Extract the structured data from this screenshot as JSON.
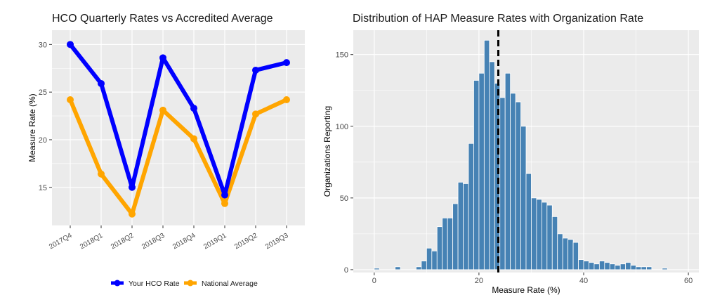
{
  "colors": {
    "panel_bg": "#ebebeb",
    "grid": "#ffffff",
    "hco": "#0000ff",
    "national": "#ffa500",
    "bars": "#4682b4",
    "org_line": "#000000",
    "text": "#4d4d4d"
  },
  "chart_data": [
    {
      "type": "line",
      "title": "HCO Quarterly Rates vs Accredited Average",
      "xlabel": "",
      "ylabel": "Measure Rate (%)",
      "categories": [
        "2017Q4",
        "2018Q1",
        "2018Q2",
        "2018Q3",
        "2018Q4",
        "2019Q1",
        "2019Q2",
        "2019Q3"
      ],
      "ylim": [
        11,
        31.5
      ],
      "yticks": [
        15,
        20,
        25,
        30
      ],
      "series": [
        {
          "name": "Your HCO Rate",
          "color": "#0000ff",
          "values": [
            30.0,
            25.9,
            15.0,
            28.6,
            23.3,
            14.2,
            27.3,
            28.1
          ]
        },
        {
          "name": "National Average",
          "color": "#ffa500",
          "values": [
            24.2,
            16.4,
            12.2,
            23.1,
            20.1,
            13.3,
            22.7,
            24.2
          ]
        }
      ],
      "grid": true,
      "legend_position": "bottom"
    },
    {
      "type": "bar",
      "subtype": "histogram",
      "title": "Distribution of HAP Measure Rates with Organization Rate",
      "xlabel": "Measure Rate (%)",
      "ylabel": "Organizations Reporting",
      "xlim": [
        -4,
        62
      ],
      "ylim": [
        -2,
        167
      ],
      "xticks": [
        0,
        20,
        40,
        60
      ],
      "yticks": [
        0,
        50,
        100,
        150
      ],
      "bin_width": 1,
      "bin_starts": [
        0,
        4,
        8,
        9,
        10,
        11,
        12,
        13,
        14,
        15,
        16,
        17,
        18,
        19,
        20,
        21,
        22,
        23,
        24,
        25,
        26,
        27,
        28,
        29,
        30,
        31,
        32,
        33,
        34,
        35,
        36,
        37,
        38,
        39,
        40,
        41,
        42,
        43,
        44,
        45,
        46,
        47,
        48,
        49,
        50,
        51,
        52,
        55
      ],
      "counts": [
        1,
        2,
        2,
        6,
        15,
        13,
        30,
        36,
        36,
        46,
        61,
        60,
        88,
        132,
        137,
        160,
        145,
        130,
        120,
        137,
        123,
        117,
        100,
        67,
        50,
        49,
        47,
        45,
        37,
        25,
        22,
        21,
        19,
        7,
        6,
        5,
        4,
        6,
        5,
        4,
        3,
        4,
        5,
        3,
        2,
        2,
        2,
        1
      ],
      "organization_rate": 23.7
    }
  ],
  "legend": {
    "items": [
      "Your HCO Rate",
      "National Average"
    ]
  }
}
